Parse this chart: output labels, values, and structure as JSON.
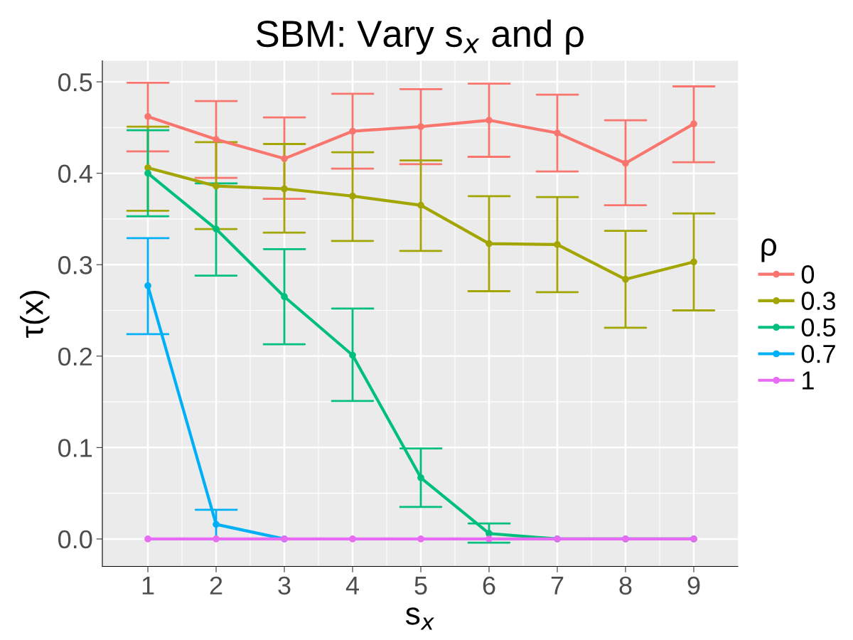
{
  "chart_data": {
    "type": "line",
    "title": "SBM: Vary s$_{x}$ and ρ",
    "xlabel": "s$_{x}$",
    "ylabel": "τ(x)",
    "legend_title": "ρ",
    "x": [
      1,
      2,
      3,
      4,
      5,
      6,
      7,
      8,
      9
    ],
    "series": [
      {
        "name": "0",
        "color": "#f8766d",
        "values": [
          0.462,
          0.437,
          0.416,
          0.446,
          0.451,
          0.458,
          0.444,
          0.411,
          0.454
        ],
        "errors": [
          [
            0.424,
            0.499
          ],
          [
            0.395,
            0.479
          ],
          [
            0.372,
            0.461
          ],
          [
            0.405,
            0.487
          ],
          [
            0.41,
            0.492
          ],
          [
            0.418,
            0.498
          ],
          [
            0.402,
            0.486
          ],
          [
            0.365,
            0.458
          ],
          [
            0.412,
            0.495
          ]
        ]
      },
      {
        "name": "0.3",
        "color": "#a3a500",
        "values": [
          0.406,
          0.386,
          0.383,
          0.375,
          0.365,
          0.323,
          0.322,
          0.284,
          0.303
        ],
        "errors": [
          [
            0.359,
            0.451
          ],
          [
            0.339,
            0.434
          ],
          [
            0.335,
            0.432
          ],
          [
            0.326,
            0.423
          ],
          [
            0.315,
            0.414
          ],
          [
            0.271,
            0.375
          ],
          [
            0.27,
            0.374
          ],
          [
            0.231,
            0.337
          ],
          [
            0.25,
            0.356
          ]
        ]
      },
      {
        "name": "0.5",
        "color": "#00bf7d",
        "values": [
          0.4,
          0.339,
          0.265,
          0.201,
          0.067,
          0.006,
          0,
          0,
          0
        ],
        "errors": [
          [
            0.353,
            0.447
          ],
          [
            0.288,
            0.389
          ],
          [
            0.213,
            0.317
          ],
          [
            0.151,
            0.252
          ],
          [
            0.035,
            0.099
          ],
          [
            -0.004,
            0.017
          ],
          null,
          null,
          null
        ]
      },
      {
        "name": "0.7",
        "color": "#00b0f6",
        "values": [
          0.277,
          0.016,
          0,
          null,
          null,
          null,
          null,
          null,
          null
        ],
        "errors": [
          [
            0.224,
            0.329
          ],
          [
            0.0,
            0.032
          ],
          null,
          null,
          null,
          null,
          null,
          null,
          null
        ]
      },
      {
        "name": "1",
        "color": "#e76bf3",
        "values": [
          0,
          0,
          0,
          0,
          0,
          0,
          0,
          0,
          0
        ]
      }
    ],
    "xlim": [
      0.333,
      9.646
    ],
    "xticks": [
      1,
      2,
      3,
      4,
      5,
      6,
      7,
      8,
      9
    ],
    "ylim": [
      -0.03,
      0.523
    ],
    "yticks": [
      {
        "value": 0,
        "label": "0.0"
      },
      0.1,
      0.2,
      0.3,
      0.4,
      0.5
    ],
    "grid": true,
    "legend": "right",
    "marker": "circle",
    "line_style": "solid"
  }
}
